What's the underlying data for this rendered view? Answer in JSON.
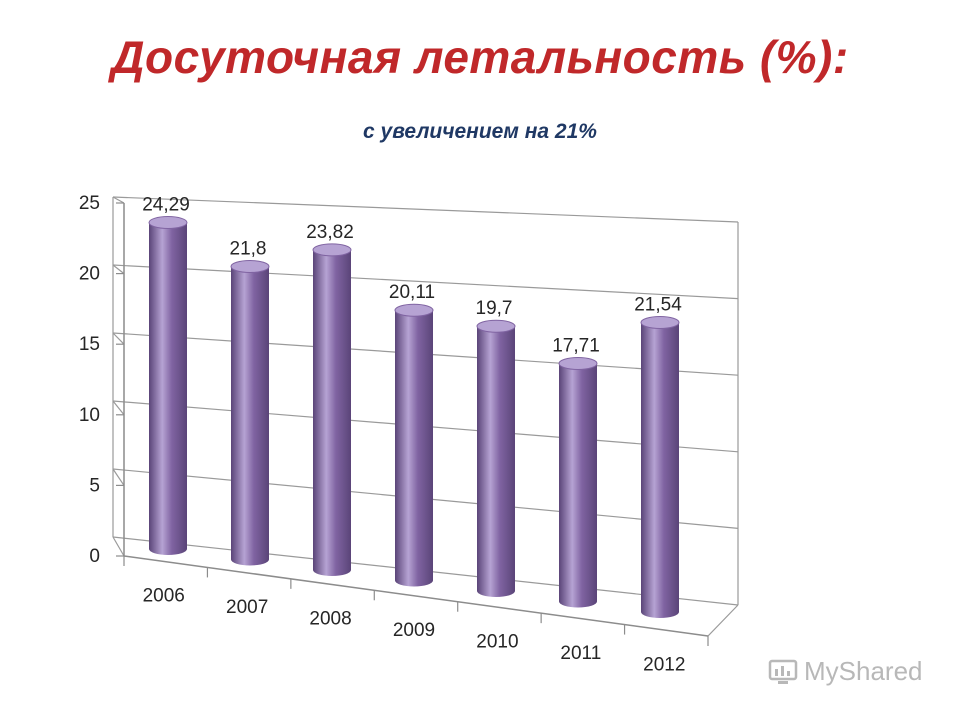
{
  "header": {
    "title": "Досуточная  летальность (%):",
    "subtitle": "с увеличением на 21%"
  },
  "watermark": {
    "text": "MyShared"
  },
  "colors": {
    "title": "#c0282a",
    "subtitle": "#1f3864",
    "bar": "#8064a2",
    "bar_dark": "#5a4478",
    "bar_light": "#b6a3d3"
  },
  "chart_data": {
    "type": "bar",
    "style": "3d-cylinder",
    "categories": [
      "2006",
      "2007",
      "2008",
      "2009",
      "2010",
      "2011",
      "2012"
    ],
    "values": [
      24.29,
      21.8,
      23.82,
      20.11,
      19.7,
      17.71,
      21.54
    ],
    "data_labels": [
      "24,29",
      "21,8",
      "23,82",
      "20,11",
      "19,7",
      "17,71",
      "21,54"
    ],
    "y_ticks": [
      "0",
      "5",
      "10",
      "15",
      "20",
      "25"
    ],
    "ylim": [
      0,
      25
    ],
    "grid": true,
    "legend": "none"
  }
}
